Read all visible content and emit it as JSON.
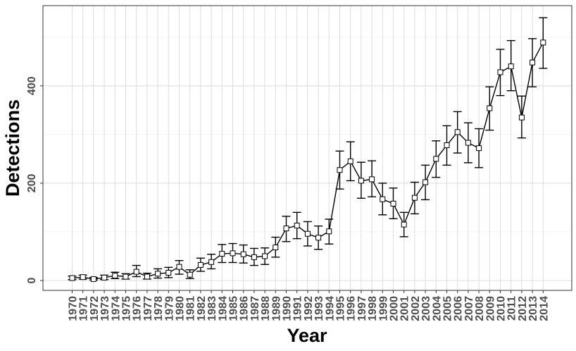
{
  "chart_data": {
    "type": "line",
    "title": "",
    "xlabel": "Year",
    "ylabel": "Detections",
    "ylim": [
      -20,
      560
    ],
    "yticks": [
      0,
      200,
      400
    ],
    "grid": true,
    "legend": "none",
    "colors": {
      "line": "#000000",
      "grid": "#dcdcdc",
      "tick_text": "#4d4d4d",
      "panel_border": "#333333"
    },
    "x": [
      1970,
      1971,
      1972,
      1973,
      1974,
      1975,
      1976,
      1977,
      1978,
      1979,
      1980,
      1981,
      1982,
      1983,
      1984,
      1985,
      1986,
      1987,
      1988,
      1989,
      1990,
      1991,
      1992,
      1993,
      1994,
      1995,
      1996,
      1997,
      1998,
      1999,
      2000,
      2001,
      2002,
      2003,
      2004,
      2005,
      2006,
      2007,
      2008,
      2009,
      2010,
      2011,
      2012,
      2013,
      2014
    ],
    "series": [
      {
        "values": [
          5,
          7,
          3,
          6,
          10,
          8,
          18,
          8,
          14,
          16,
          28,
          12,
          32,
          38,
          55,
          56,
          54,
          48,
          50,
          68,
          107,
          113,
          96,
          88,
          101,
          227,
          245,
          205,
          208,
          167,
          158,
          115,
          170,
          202,
          250,
          278,
          305,
          283,
          272,
          354,
          428,
          440,
          335,
          448,
          489
        ],
        "err_low": [
          2,
          3,
          1,
          2,
          4,
          3,
          8,
          3,
          5,
          6,
          13,
          4,
          19,
          24,
          37,
          37,
          36,
          31,
          33,
          48,
          80,
          86,
          71,
          64,
          75,
          188,
          205,
          169,
          172,
          135,
          127,
          90,
          137,
          166,
          212,
          237,
          262,
          242,
          232,
          309,
          380,
          390,
          293,
          398,
          436
        ],
        "err_high": [
          9,
          11,
          6,
          11,
          17,
          14,
          31,
          15,
          24,
          27,
          41,
          22,
          46,
          54,
          74,
          76,
          73,
          66,
          67,
          89,
          132,
          140,
          121,
          112,
          126,
          266,
          285,
          243,
          246,
          200,
          190,
          140,
          202,
          237,
          287,
          318,
          347,
          324,
          312,
          398,
          475,
          493,
          379,
          497,
          540
        ]
      }
    ]
  }
}
